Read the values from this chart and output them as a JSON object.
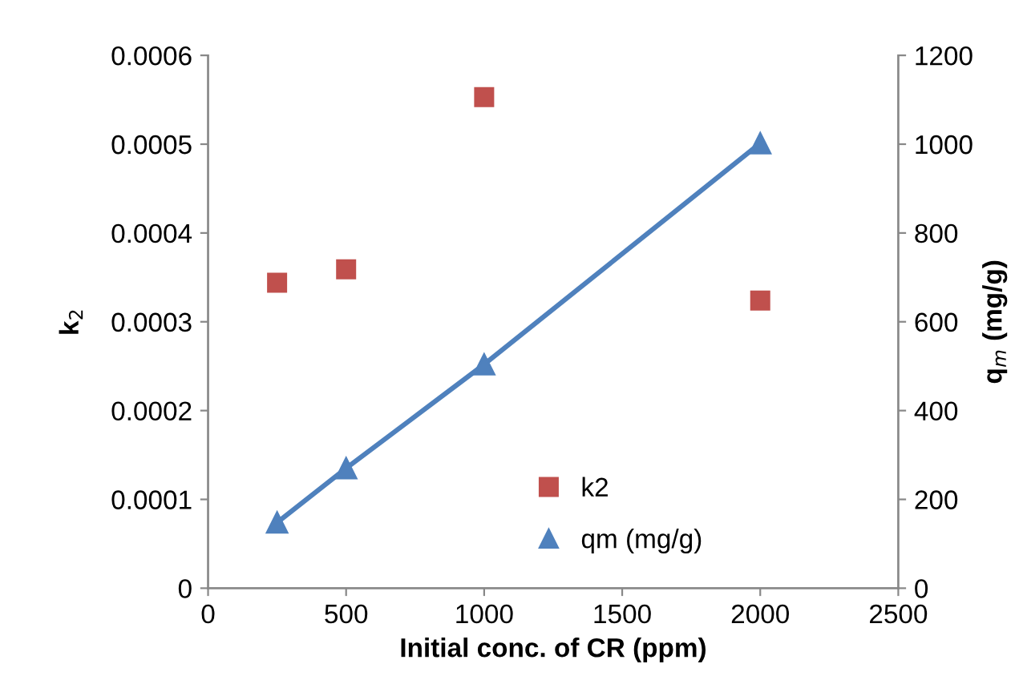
{
  "chart_data": {
    "type": "scatter",
    "xlabel": "Initial conc. of CR (ppm)",
    "ylabel": "k$_{2}$",
    "y2label": "q$_{m}$ (mg/g)",
    "x": [
      250,
      500,
      1000,
      2000
    ],
    "series": [
      {
        "name": "k2",
        "color": "#c0504d",
        "values": [
          0.000344,
          0.000359,
          0.000553,
          0.000324
        ],
        "marker": "square"
      },
      {
        "name": "qm (mg/g)",
        "color": "#4f81bd",
        "values": [
          148,
          270,
          504,
          1002
        ],
        "axis": "y2",
        "type": "line",
        "marker": "triangle"
      }
    ],
    "xlim": [
      0,
      2500
    ],
    "xticks": [
      0,
      500,
      1000,
      1500,
      2000,
      2500
    ],
    "ylim": [
      0,
      0.0006
    ],
    "yticks": [
      {
        "value": 0,
        "label": "0"
      },
      {
        "value": 0.0001,
        "label": "0.0001"
      },
      {
        "value": 0.0002,
        "label": "0.0002"
      },
      {
        "value": 0.0003,
        "label": "0.0003"
      },
      {
        "value": 0.0004,
        "label": "0.0004"
      },
      {
        "value": 0.0005,
        "label": "0.0005"
      },
      {
        "value": 0.0006,
        "label": "0.0006"
      }
    ],
    "y2lim": [
      0,
      1200
    ],
    "y2ticks": [
      0,
      200,
      400,
      600,
      800,
      1000,
      1200
    ],
    "grid": false,
    "legend": "bottom right"
  }
}
